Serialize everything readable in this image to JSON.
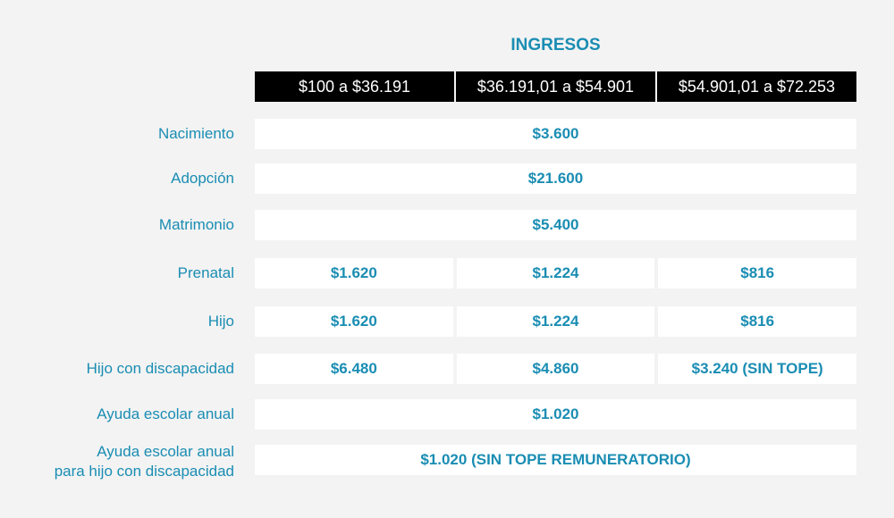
{
  "title": "INGRESOS",
  "headers": [
    "$100 a $36.191",
    "$36.191,01 a $54.901",
    "$54.901,01 a $72.253"
  ],
  "rows": [
    {
      "label": "Nacimiento",
      "values": [
        "$3.600"
      ]
    },
    {
      "label": "Adopción",
      "values": [
        "$21.600"
      ]
    },
    {
      "label": "Matrimonio",
      "values": [
        "$5.400"
      ]
    },
    {
      "label": "Prenatal",
      "values": [
        "$1.620",
        "$1.224",
        "$816"
      ]
    },
    {
      "label": "Hijo",
      "values": [
        "$1.620",
        "$1.224",
        "$816"
      ]
    },
    {
      "label": "Hijo con discapacidad",
      "values": [
        "$6.480",
        "$4.860",
        "$3.240 (SIN TOPE)"
      ]
    },
    {
      "label": "Ayuda escolar anual",
      "values": [
        "$1.020"
      ]
    },
    {
      "label": "Ayuda escolar anual\npara hijo con discapacidad",
      "values": [
        "$1.020 (SIN TOPE REMUNERATORIO)"
      ]
    }
  ],
  "colors": {
    "accent": "#1a8db3",
    "header_bg": "#000000",
    "page_bg": "#f3f3f3",
    "cell_bg": "#ffffff"
  }
}
